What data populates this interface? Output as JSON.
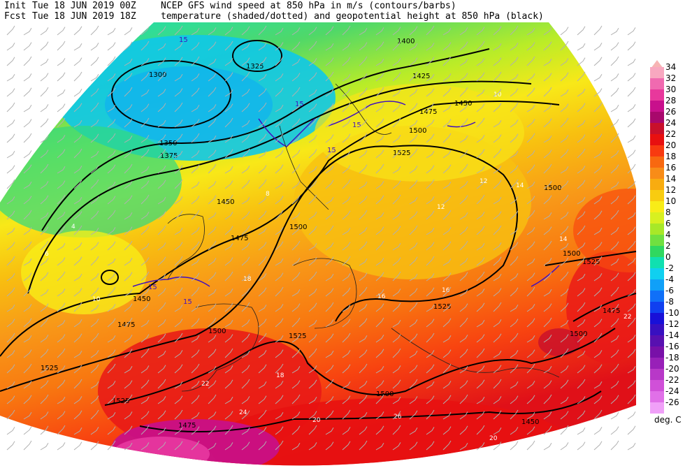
{
  "header": {
    "init_label": "Init",
    "init_time": "Tue 18 JUN 2019 00Z",
    "fcst_label": "Fcst",
    "fcst_time": "Tue 18 JUN 2019 18Z",
    "title_line1": "NCEP GFS wind speed at 850 hPa in m/s (contours/barbs)",
    "title_line2": "temperature (shaded/dotted) and geopotential height at 850 hPa (black)"
  },
  "legend": {
    "unit": "deg. C",
    "levels": [
      {
        "label": "34",
        "color": "#f8a8c0"
      },
      {
        "label": "32",
        "color": "#f06ab0"
      },
      {
        "label": "30",
        "color": "#e8389c"
      },
      {
        "label": "28",
        "color": "#c8108c"
      },
      {
        "label": "26",
        "color": "#a8086c"
      },
      {
        "label": "24",
        "color": "#c8102c"
      },
      {
        "label": "22",
        "color": "#e81010"
      },
      {
        "label": "20",
        "color": "#f83a10"
      },
      {
        "label": "18",
        "color": "#f86810"
      },
      {
        "label": "16",
        "color": "#f88c18"
      },
      {
        "label": "14",
        "color": "#f8ac10"
      },
      {
        "label": "12",
        "color": "#f8cc10"
      },
      {
        "label": "10",
        "color": "#f8ec18"
      },
      {
        "label": "8",
        "color": "#d8f020"
      },
      {
        "label": "6",
        "color": "#a8e828"
      },
      {
        "label": "4",
        "color": "#70e040"
      },
      {
        "label": "2",
        "color": "#30d860"
      },
      {
        "label": "0",
        "color": "#10e0b0"
      },
      {
        "label": "-2",
        "color": "#10d0f0"
      },
      {
        "label": "-4",
        "color": "#10a0f8"
      },
      {
        "label": "-6",
        "color": "#1070f8"
      },
      {
        "label": "-8",
        "color": "#1040f0"
      },
      {
        "label": "-10",
        "color": "#1810d8"
      },
      {
        "label": "-12",
        "color": "#3810c0"
      },
      {
        "label": "-14",
        "color": "#5810b0"
      },
      {
        "label": "-16",
        "color": "#7810a8"
      },
      {
        "label": "-18",
        "color": "#9820b8"
      },
      {
        "label": "-20",
        "color": "#b838c8"
      },
      {
        "label": "-22",
        "color": "#d050d8"
      },
      {
        "label": "-24",
        "color": "#e070e8"
      },
      {
        "label": "-26",
        "color": "#f0a0f8"
      }
    ]
  },
  "map": {
    "height_labels": [
      "1400",
      "1325",
      "1300",
      "1350",
      "1375",
      "1425",
      "1450",
      "1475",
      "1450",
      "1450",
      "1475",
      "1500",
      "1525",
      "1500",
      "1500",
      "1500",
      "1525",
      "1525",
      "1475",
      "1475",
      "1500",
      "1500",
      "1525",
      "1525",
      "1525",
      "1500",
      "1450",
      "1475"
    ],
    "temp_labels": [
      "4",
      "6",
      "8",
      "10",
      "12",
      "14",
      "16",
      "18",
      "20",
      "22",
      "24",
      "26",
      "10",
      "12",
      "14",
      "16",
      "18",
      "20",
      "22"
    ],
    "wind_labels": [
      "15",
      "15",
      "15",
      "15",
      "15",
      "15"
    ]
  }
}
